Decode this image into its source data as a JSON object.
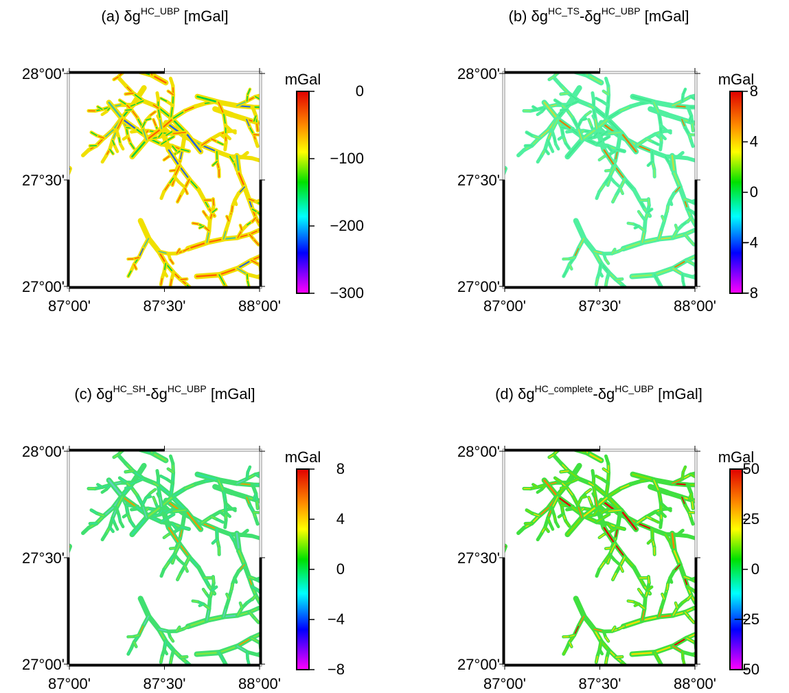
{
  "lat_labels": [
    "28°00'",
    "27°30'",
    "27°00'"
  ],
  "lon_labels": [
    "87°00'",
    "87°30'",
    "88°00'"
  ],
  "panels": [
    {
      "title": [
        {
          "text": "(a) δg"
        },
        {
          "text": "HC_UBP",
          "sup": true
        },
        {
          "text": " [mGal]"
        }
      ],
      "colorbar_label": "mGal",
      "clim": [
        -300,
        0
      ],
      "colorbar_ticks": [
        0,
        {
          "value": -100,
          "label": "−100"
        },
        {
          "value": -200,
          "label": "−200"
        },
        {
          "value": -300,
          "label": "−300"
        }
      ]
    },
    {
      "title": [
        {
          "text": "(b) δg"
        },
        {
          "text": "HC_TS",
          "sup": true
        },
        {
          "text": "-δg"
        },
        {
          "text": "HC_UBP",
          "sup": true
        },
        {
          "text": " [mGal]"
        }
      ],
      "colorbar_label": "mGal",
      "clim": [
        -8,
        8
      ],
      "colorbar_ticks": [
        8,
        4,
        0,
        {
          "value": -4,
          "label": "−4"
        },
        {
          "value": -8,
          "label": "−8"
        }
      ]
    },
    {
      "title": [
        {
          "text": "(c) δg"
        },
        {
          "text": "HC_SH",
          "sup": true
        },
        {
          "text": "-δg"
        },
        {
          "text": "HC_UBP",
          "sup": true
        },
        {
          "text": " [mGal]"
        }
      ],
      "colorbar_label": "mGal",
      "clim": [
        -8,
        8
      ],
      "colorbar_ticks": [
        8,
        4,
        0,
        {
          "value": -4,
          "label": "−4"
        },
        {
          "value": -8,
          "label": "−8"
        }
      ]
    },
    {
      "title": [
        {
          "text": "(d) δg"
        },
        {
          "text": "HC_complete",
          "sup": true
        },
        {
          "text": "-δg"
        },
        {
          "text": "HC_UBP",
          "sup": true
        },
        {
          "text": " [mGal]"
        }
      ],
      "colorbar_label": "mGal",
      "clim": [
        -50,
        50
      ],
      "colorbar_ticks": [
        50,
        25,
        0,
        {
          "value": -25,
          "label": "−25"
        },
        {
          "value": -50,
          "label": "−50"
        }
      ]
    }
  ]
}
